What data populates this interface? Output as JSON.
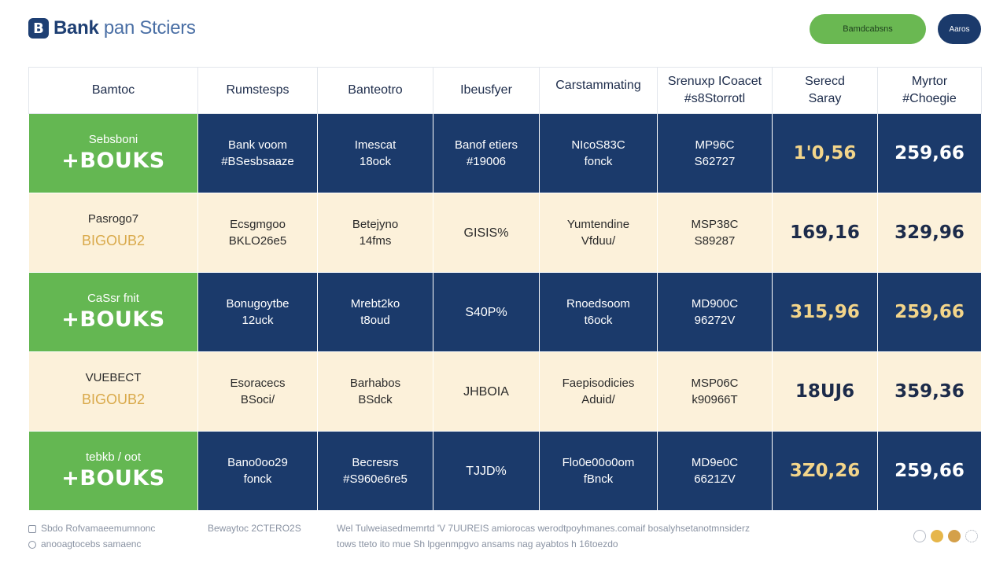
{
  "header": {
    "logo_mark": "B",
    "logo_bold": "Bank",
    "logo_light": "pan Stciers",
    "primary_button": "Bamdcabsns",
    "secondary_button": "Aaros"
  },
  "table": {
    "columns": [
      {
        "line1": "Bamtoc",
        "line2": ""
      },
      {
        "line1": "Rumstesps",
        "line2": ""
      },
      {
        "line1": "Banteotro",
        "line2": ""
      },
      {
        "line1": "Ibeusfyer",
        "line2": ""
      },
      {
        "line1": "Carstammating",
        "line2": ""
      },
      {
        "line1": "Srenuxp ICoacet",
        "line2": "#s8Storrotl"
      },
      {
        "line1": "Serecd",
        "line2": "Saray"
      },
      {
        "line1": "Myrtor",
        "line2": "#Choegie"
      }
    ],
    "rows": [
      {
        "style": "blue",
        "tag_top": "Sebsboni",
        "tag_big": "+BOUKS",
        "c1": [
          "Bank voom",
          "#BSesbsaaze"
        ],
        "c2": [
          "Imescat",
          "18ock"
        ],
        "c3": [
          "Banof etiers",
          "#19006"
        ],
        "c4": [
          "NIcoS83C",
          "fonck"
        ],
        "c5": [
          "MP96C",
          "S62727"
        ],
        "n1": "1'0,56",
        "n2": "259,66"
      },
      {
        "style": "cream",
        "tag_top": "Pasrogo7",
        "tag_big": "BIGOUB2",
        "c1": [
          "Ecsgmgoo",
          "BKLO26e5"
        ],
        "c2": [
          "Betejyno",
          "14fms"
        ],
        "c3": [
          "GISIS%"
        ],
        "c4": [
          "Yumtendine",
          "Vfduu/"
        ],
        "c5": [
          "MSP38C",
          "S89287"
        ],
        "n1": "169,16",
        "n2": "329,96"
      },
      {
        "style": "blue",
        "tag_top": "CaSsr fnit",
        "tag_big": "+BOUKS",
        "c1": [
          "Bonugoytbe",
          "12uck"
        ],
        "c2": [
          "Mrebt2ko",
          "t8oud"
        ],
        "c3": [
          "S40P%"
        ],
        "c4": [
          "Rnoedsoom",
          "t6ock"
        ],
        "c5": [
          "MD900C",
          "96272V"
        ],
        "n1": "315,96",
        "n2": "259,66"
      },
      {
        "style": "cream",
        "tag_top": "VUEBECT",
        "tag_big": "BIGOUB2",
        "c1": [
          "Esoracecs",
          "BSoci/"
        ],
        "c2": [
          "Barhabos",
          "BSdck"
        ],
        "c3": [
          "JHBOIA"
        ],
        "c4": [
          "Faepisodicies",
          "Aduid/"
        ],
        "c5": [
          "MSP06C",
          "k90966T"
        ],
        "n1": "18UJ6",
        "n2": "359,36"
      },
      {
        "style": "blue",
        "tag_top": "tebkb / oot",
        "tag_big": "+BOUKS",
        "c1": [
          "Bano0oo29",
          "fonck"
        ],
        "c2": [
          "Becresrs",
          "#S960e6re5"
        ],
        "c3": [
          "TJJD%"
        ],
        "c4": [
          "Flo0e00o0om",
          "fBnck"
        ],
        "c5": [
          "MD9e0C",
          "6621ZV"
        ],
        "n1": "3Z0,26",
        "n2": "259,66"
      }
    ]
  },
  "footer": {
    "col1_line1": "Sbdo Rofvamaeemumnonc",
    "col1_line2": "anooagtocebs samaenc",
    "col2_line1": "Bewaytoc 2CTERO2S",
    "col3_line1": "Wel Tulweiasedmemrtd 'V 7UUREIS amiorocas werodtpoyhmanes.comaif bosalyhsetanotmnsiderz",
    "col3_line2": "tows tteto ito mue Sh lpgenmpgvo ansams nag ayabtos h 16toezdo"
  }
}
